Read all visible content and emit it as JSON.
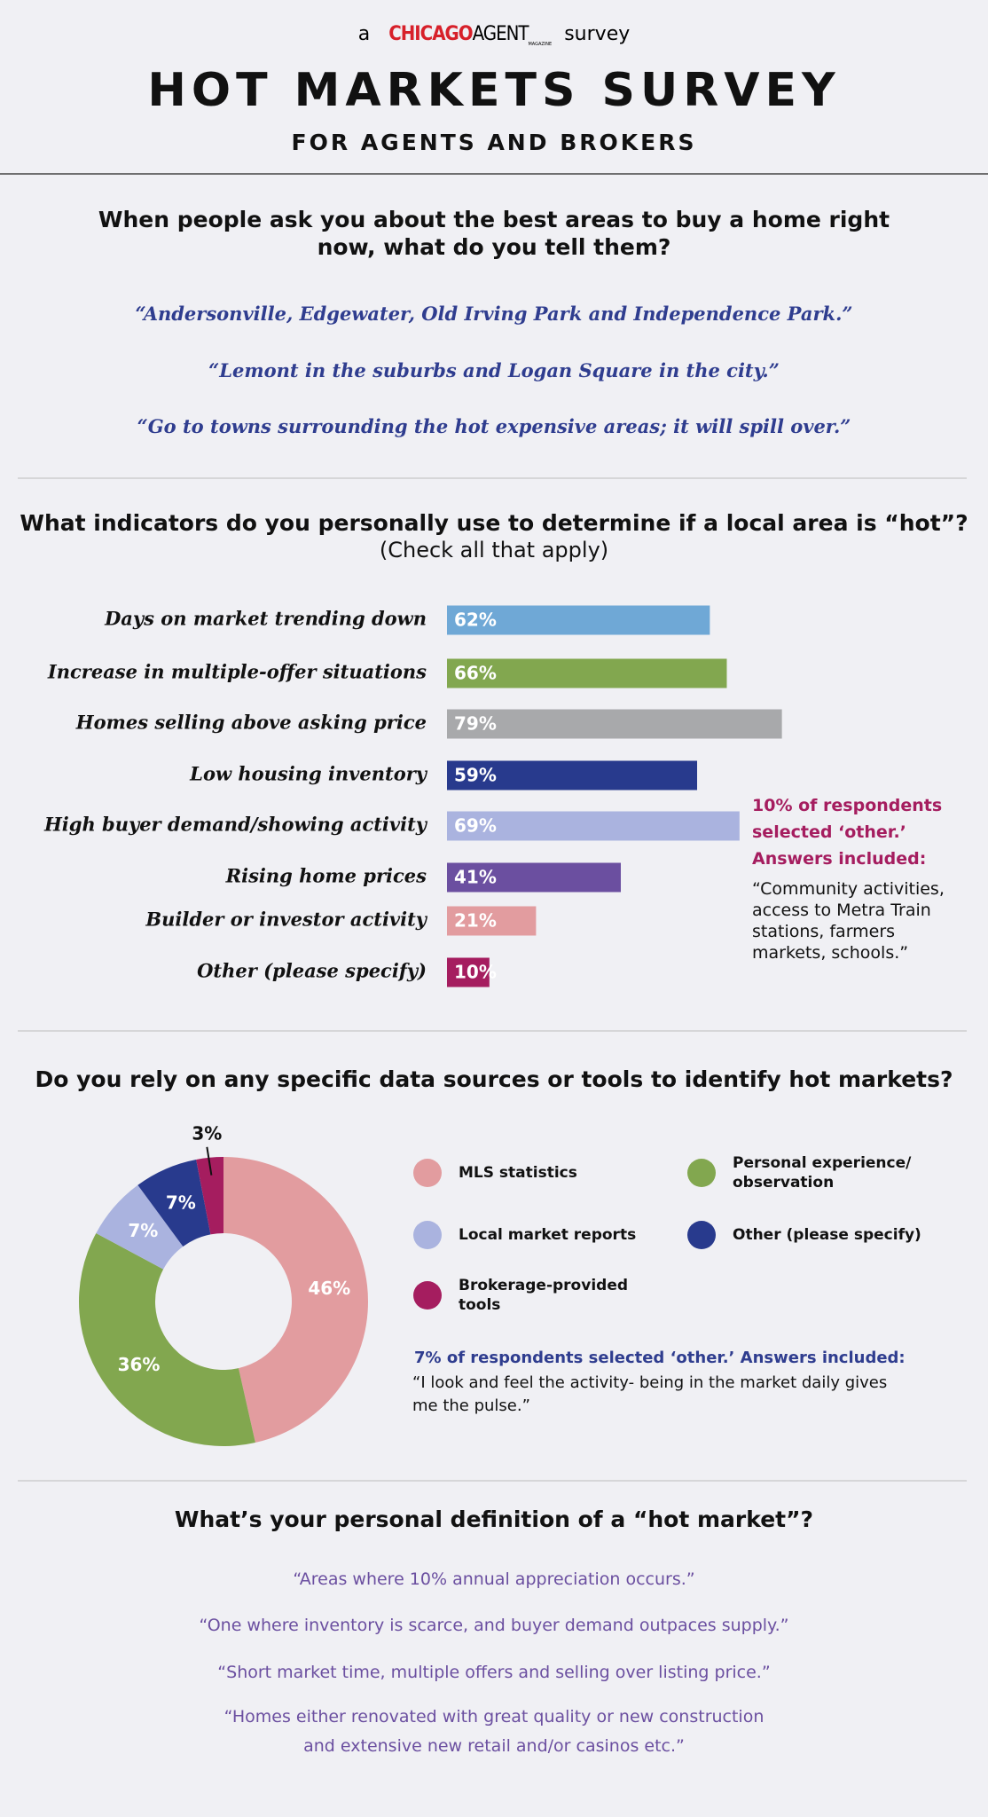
{
  "header": {
    "pre": "a",
    "logo_red": "CHICAGO",
    "logo_black": "AGENT",
    "logo_small": "MAGAZINE",
    "post": "survey",
    "title": "HOT MARKETS SURVEY",
    "subtitle": "FOR AGENTS AND BROKERS"
  },
  "q1": {
    "question": "When people ask you about the best areas to buy a home right now, what do you tell them?",
    "quotes": [
      "“Andersonville, Edgewater, Old Irving Park and Independence Park.”",
      "“Lemont in the suburbs and Logan Square in the city.”",
      "“Go to towns surrounding the hot expensive areas; it will spill over.”"
    ]
  },
  "q2": {
    "question": "What indicators do you personally use to determine if a local area is “hot”?",
    "instruction": "(Check all that apply)",
    "note_title": "10% of respondents selected ‘other.’ Answers included:",
    "note_text": "“Community activities, access to Metra Train stations, farmers markets, schools.”"
  },
  "q3": {
    "question": "Do you rely on any specific data sources or tools to identify hot markets?",
    "note_title": "7% of respondents selected ‘other.’ Answers included:",
    "note_text": "“I look and feel the activity- being in the market daily gives me the pulse.”"
  },
  "q4": {
    "question": "What’s your personal definition of a “hot market”?",
    "quotes": [
      "“Areas where 10% annual appreciation occurs.”",
      "“One where inventory is scarce, and buyer demand outpaces supply.”",
      "“Short market time, multiple offers and selling over listing price.”",
      "“Homes either renovated with great quality or new construction and extensive new retail and/or casinos etc.”"
    ]
  },
  "chart_data": [
    {
      "type": "hbar",
      "categories": [
        "Days on market trending down",
        "Increase in multiple-offer situations",
        "Homes selling above asking price",
        "Low housing inventory",
        "High buyer demand/showing activity",
        "Rising home prices",
        "Builder or investor activity",
        "Other (please specify)"
      ],
      "values": [
        62,
        66,
        79,
        59,
        69,
        41,
        21,
        10
      ],
      "value_labels": [
        "62%",
        "66%",
        "79%",
        "59%",
        "69%",
        "41%",
        "21%",
        "10%"
      ],
      "colors": [
        "#6fa8d6",
        "#82a74f",
        "#a8a9ab",
        "#283a8d",
        "#aab3df",
        "#6b4fa0",
        "#e29c9f",
        "#a51d5f"
      ],
      "xlim": [
        0,
        100
      ]
    },
    {
      "type": "donut",
      "categories": [
        "MLS statistics",
        "Personal experience/ observation",
        "Local market reports",
        "Other (please specify)",
        "Brokerage-provided tools"
      ],
      "values": [
        46,
        36,
        7,
        7,
        3
      ],
      "value_labels": [
        "46%",
        "36%",
        "7%",
        "7%",
        "3%"
      ],
      "colors": [
        "#e29c9f",
        "#82a74f",
        "#aab3df",
        "#283a8d",
        "#a51d5f"
      ]
    }
  ]
}
